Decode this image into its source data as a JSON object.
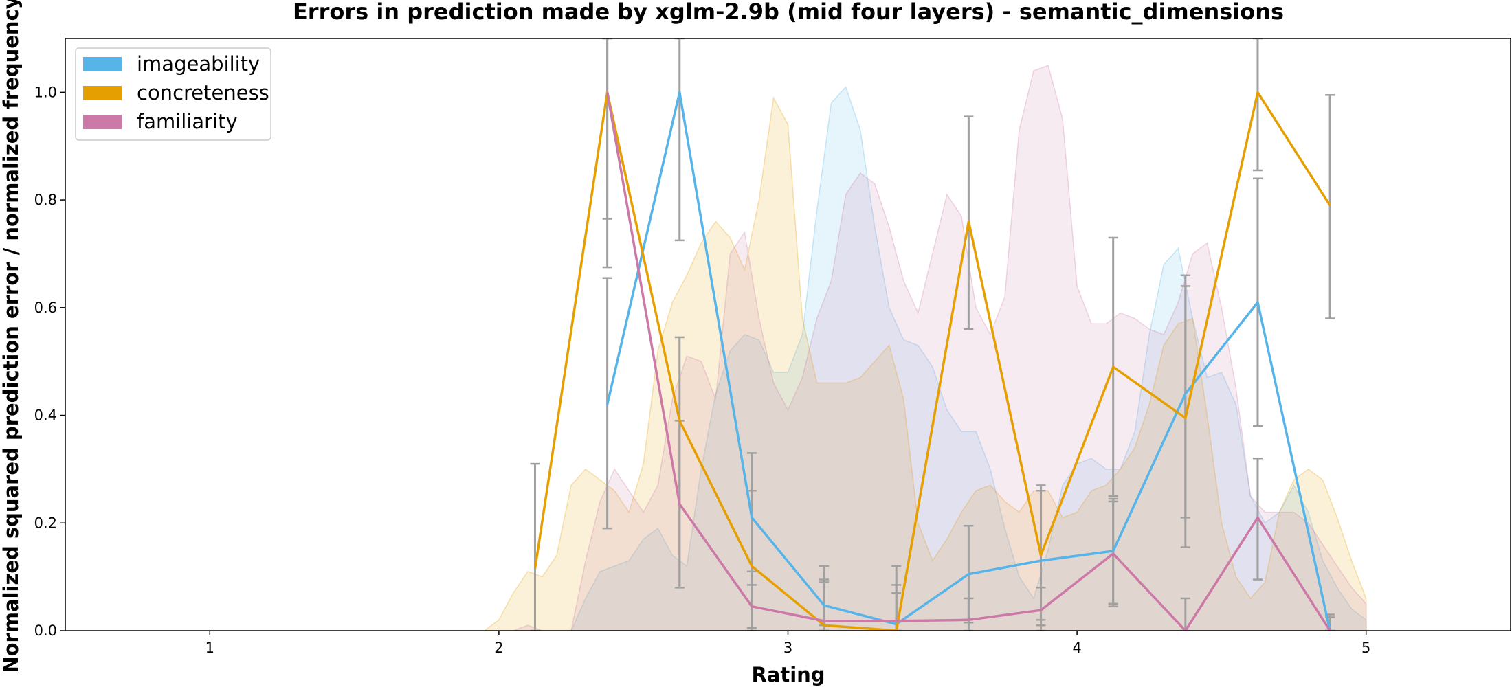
{
  "chart_data": {
    "type": "line",
    "title": "Errors in prediction made by xglm-2.9b (mid four layers) - semantic_dimensions",
    "xlabel": "Rating",
    "ylabel": "Normalized squared prediction error / normalized frequency",
    "xlim": [
      0.5,
      5.5
    ],
    "ylim": [
      0.0,
      1.1
    ],
    "xticks": [
      1,
      2,
      3,
      4,
      5
    ],
    "xtick_labels": [
      "1",
      "2",
      "3",
      "4",
      "5"
    ],
    "yticks": [
      0.0,
      0.2,
      0.4,
      0.6,
      0.8,
      1.0
    ],
    "ytick_labels": [
      "0.0",
      "0.2",
      "0.4",
      "0.6",
      "0.8",
      "1.0"
    ],
    "legend_position": "top-left",
    "grid": false,
    "errorbar_color": "#a0a0a0",
    "series": [
      {
        "name": "imageability",
        "color": "#56b4e9",
        "x": [
          2.375,
          2.625,
          2.875,
          3.125,
          3.375,
          3.625,
          3.875,
          4.125,
          4.375,
          4.625,
          4.875
        ],
        "y": [
          0.42,
          1.0,
          0.21,
          0.047,
          0.012,
          0.105,
          0.13,
          0.148,
          0.44,
          0.61,
          0.0
        ],
        "err_low": [
          0.19,
          0.725,
          0.085,
          0.01,
          0.0,
          0.015,
          0.02,
          0.045,
          0.21,
          0.38,
          0.0
        ],
        "err_high": [
          0.655,
          1.1,
          0.33,
          0.09,
          0.07,
          0.195,
          0.26,
          0.245,
          0.66,
          0.84,
          0.03
        ],
        "density": [
          [
            2.25,
            0.0
          ],
          [
            2.3,
            0.06
          ],
          [
            2.35,
            0.11
          ],
          [
            2.4,
            0.12
          ],
          [
            2.45,
            0.13
          ],
          [
            2.5,
            0.17
          ],
          [
            2.55,
            0.19
          ],
          [
            2.6,
            0.14
          ],
          [
            2.65,
            0.12
          ],
          [
            2.7,
            0.3
          ],
          [
            2.75,
            0.44
          ],
          [
            2.8,
            0.52
          ],
          [
            2.85,
            0.55
          ],
          [
            2.9,
            0.54
          ],
          [
            2.95,
            0.48
          ],
          [
            3.0,
            0.48
          ],
          [
            3.05,
            0.55
          ],
          [
            3.1,
            0.78
          ],
          [
            3.15,
            0.98
          ],
          [
            3.2,
            1.01
          ],
          [
            3.25,
            0.93
          ],
          [
            3.3,
            0.75
          ],
          [
            3.35,
            0.6
          ],
          [
            3.4,
            0.54
          ],
          [
            3.45,
            0.53
          ],
          [
            3.5,
            0.49
          ],
          [
            3.55,
            0.41
          ],
          [
            3.6,
            0.37
          ],
          [
            3.65,
            0.37
          ],
          [
            3.7,
            0.3
          ],
          [
            3.75,
            0.19
          ],
          [
            3.8,
            0.1
          ],
          [
            3.85,
            0.06
          ],
          [
            3.9,
            0.15
          ],
          [
            3.95,
            0.27
          ],
          [
            4.0,
            0.31
          ],
          [
            4.05,
            0.32
          ],
          [
            4.1,
            0.3
          ],
          [
            4.15,
            0.3
          ],
          [
            4.2,
            0.37
          ],
          [
            4.25,
            0.55
          ],
          [
            4.3,
            0.68
          ],
          [
            4.35,
            0.71
          ],
          [
            4.4,
            0.58
          ],
          [
            4.45,
            0.47
          ],
          [
            4.5,
            0.48
          ],
          [
            4.55,
            0.42
          ],
          [
            4.6,
            0.25
          ],
          [
            4.65,
            0.2
          ],
          [
            4.7,
            0.22
          ],
          [
            4.75,
            0.27
          ],
          [
            4.8,
            0.22
          ],
          [
            4.85,
            0.13
          ],
          [
            4.9,
            0.08
          ],
          [
            4.95,
            0.04
          ],
          [
            5.0,
            0.02
          ]
        ]
      },
      {
        "name": "concreteness",
        "color": "#e69f00",
        "x": [
          2.125,
          2.375,
          2.625,
          2.875,
          3.125,
          3.375,
          3.625,
          3.875,
          4.125,
          4.375,
          4.625,
          4.875
        ],
        "y": [
          0.115,
          1.0,
          0.39,
          0.12,
          0.01,
          0.0,
          0.76,
          0.14,
          0.49,
          0.395,
          1.0,
          0.79
        ],
        "err_low": [
          0.0,
          0.675,
          0.08,
          0.005,
          0.0,
          0.0,
          0.56,
          0.01,
          0.25,
          0.155,
          0.855,
          0.58
        ],
        "err_high": [
          0.31,
          1.1,
          0.545,
          0.26,
          0.12,
          0.12,
          0.955,
          0.27,
          0.73,
          0.64,
          1.1,
          0.995
        ],
        "density": [
          [
            1.8,
            0.0
          ],
          [
            1.95,
            0.0
          ],
          [
            2.0,
            0.02
          ],
          [
            2.05,
            0.07
          ],
          [
            2.1,
            0.11
          ],
          [
            2.15,
            0.1
          ],
          [
            2.2,
            0.14
          ],
          [
            2.25,
            0.27
          ],
          [
            2.3,
            0.3
          ],
          [
            2.35,
            0.28
          ],
          [
            2.4,
            0.26
          ],
          [
            2.45,
            0.22
          ],
          [
            2.5,
            0.31
          ],
          [
            2.55,
            0.52
          ],
          [
            2.6,
            0.61
          ],
          [
            2.65,
            0.66
          ],
          [
            2.7,
            0.72
          ],
          [
            2.75,
            0.76
          ],
          [
            2.8,
            0.73
          ],
          [
            2.85,
            0.67
          ],
          [
            2.9,
            0.8
          ],
          [
            2.95,
            0.99
          ],
          [
            3.0,
            0.94
          ],
          [
            3.05,
            0.58
          ],
          [
            3.1,
            0.46
          ],
          [
            3.15,
            0.46
          ],
          [
            3.2,
            0.46
          ],
          [
            3.25,
            0.47
          ],
          [
            3.3,
            0.5
          ],
          [
            3.35,
            0.53
          ],
          [
            3.4,
            0.43
          ],
          [
            3.45,
            0.2
          ],
          [
            3.5,
            0.13
          ],
          [
            3.55,
            0.17
          ],
          [
            3.6,
            0.22
          ],
          [
            3.65,
            0.26
          ],
          [
            3.7,
            0.27
          ],
          [
            3.75,
            0.24
          ],
          [
            3.8,
            0.22
          ],
          [
            3.85,
            0.26
          ],
          [
            3.9,
            0.26
          ],
          [
            3.95,
            0.21
          ],
          [
            4.0,
            0.22
          ],
          [
            4.05,
            0.26
          ],
          [
            4.1,
            0.27
          ],
          [
            4.15,
            0.3
          ],
          [
            4.2,
            0.34
          ],
          [
            4.25,
            0.42
          ],
          [
            4.3,
            0.53
          ],
          [
            4.35,
            0.57
          ],
          [
            4.4,
            0.58
          ],
          [
            4.45,
            0.4
          ],
          [
            4.5,
            0.2
          ],
          [
            4.55,
            0.1
          ],
          [
            4.6,
            0.06
          ],
          [
            4.65,
            0.09
          ],
          [
            4.7,
            0.22
          ],
          [
            4.75,
            0.28
          ],
          [
            4.8,
            0.3
          ],
          [
            4.85,
            0.28
          ],
          [
            4.9,
            0.21
          ],
          [
            4.95,
            0.13
          ],
          [
            5.0,
            0.06
          ]
        ]
      },
      {
        "name": "familiarity",
        "color": "#cc79a7",
        "x": [
          2.375,
          2.625,
          2.875,
          3.125,
          3.375,
          3.625,
          3.875,
          4.125,
          4.375,
          4.625,
          4.875
        ],
        "y": [
          1.0,
          0.235,
          0.045,
          0.018,
          0.018,
          0.02,
          0.038,
          0.143,
          0.0,
          0.21,
          0.0
        ],
        "err_low": [
          0.765,
          0.08,
          0.0,
          0.0,
          0.0,
          0.0,
          0.0,
          0.05,
          0.0,
          0.095,
          0.0
        ],
        "err_high": [
          1.1,
          0.39,
          0.11,
          0.095,
          0.085,
          0.06,
          0.08,
          0.24,
          0.06,
          0.32,
          0.025
        ],
        "density": [
          [
            2.0,
            0.0
          ],
          [
            2.05,
            0.0
          ],
          [
            2.1,
            0.01
          ],
          [
            2.15,
            0.0
          ],
          [
            2.2,
            0.0
          ],
          [
            2.25,
            0.0
          ],
          [
            2.3,
            0.13
          ],
          [
            2.35,
            0.24
          ],
          [
            2.4,
            0.3
          ],
          [
            2.45,
            0.26
          ],
          [
            2.5,
            0.22
          ],
          [
            2.55,
            0.27
          ],
          [
            2.6,
            0.43
          ],
          [
            2.65,
            0.51
          ],
          [
            2.7,
            0.5
          ],
          [
            2.75,
            0.43
          ],
          [
            2.8,
            0.7
          ],
          [
            2.85,
            0.74
          ],
          [
            2.9,
            0.58
          ],
          [
            2.95,
            0.46
          ],
          [
            3.0,
            0.41
          ],
          [
            3.05,
            0.47
          ],
          [
            3.1,
            0.58
          ],
          [
            3.15,
            0.65
          ],
          [
            3.2,
            0.81
          ],
          [
            3.25,
            0.85
          ],
          [
            3.3,
            0.83
          ],
          [
            3.35,
            0.75
          ],
          [
            3.4,
            0.65
          ],
          [
            3.45,
            0.59
          ],
          [
            3.5,
            0.7
          ],
          [
            3.55,
            0.81
          ],
          [
            3.6,
            0.77
          ],
          [
            3.65,
            0.6
          ],
          [
            3.7,
            0.55
          ],
          [
            3.75,
            0.62
          ],
          [
            3.8,
            0.93
          ],
          [
            3.85,
            1.04
          ],
          [
            3.9,
            1.05
          ],
          [
            3.95,
            0.95
          ],
          [
            4.0,
            0.64
          ],
          [
            4.05,
            0.57
          ],
          [
            4.1,
            0.57
          ],
          [
            4.15,
            0.59
          ],
          [
            4.2,
            0.58
          ],
          [
            4.25,
            0.56
          ],
          [
            4.3,
            0.55
          ],
          [
            4.35,
            0.61
          ],
          [
            4.4,
            0.7
          ],
          [
            4.45,
            0.72
          ],
          [
            4.5,
            0.6
          ],
          [
            4.55,
            0.45
          ],
          [
            4.6,
            0.25
          ],
          [
            4.65,
            0.22
          ],
          [
            4.7,
            0.22
          ],
          [
            4.75,
            0.22
          ],
          [
            4.8,
            0.2
          ],
          [
            4.85,
            0.16
          ],
          [
            4.9,
            0.12
          ],
          [
            4.95,
            0.08
          ],
          [
            5.0,
            0.05
          ]
        ]
      }
    ]
  }
}
